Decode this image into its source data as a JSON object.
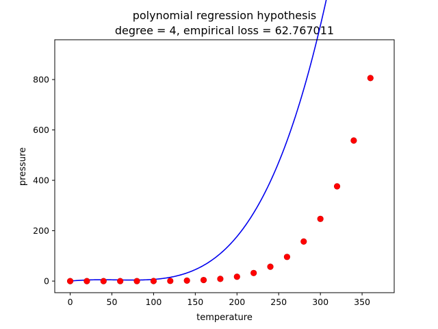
{
  "chart_data": {
    "type": "scatter",
    "title": "polynomial regression hypothesis",
    "subtitle": "degree = 4, empirical loss = 62.767011",
    "xlabel": "temperature",
    "ylabel": "pressure",
    "xlim": [
      -18.5,
      388.5
    ],
    "ylim": [
      -46,
      958
    ],
    "xticks": [
      0,
      50,
      100,
      150,
      200,
      250,
      300,
      350
    ],
    "yticks": [
      0,
      200,
      400,
      600,
      800
    ],
    "grid": false,
    "legend": "none",
    "colors": {
      "points": "#ff0000",
      "points_edge": "#cc0000",
      "curve": "#0000ee"
    },
    "points": {
      "x": [
        0,
        20,
        40,
        60,
        80,
        100,
        120,
        140,
        160,
        180,
        200,
        220,
        240,
        260,
        280,
        300,
        320,
        340,
        360
      ],
      "y": [
        0.0002,
        0.0012,
        0.006,
        0.03,
        0.09,
        0.27,
        0.75,
        1.85,
        4.2,
        8.8,
        17.3,
        32.1,
        57,
        96,
        157,
        247,
        376,
        558,
        806
      ]
    },
    "curve": {
      "x_range": [
        0,
        370
      ],
      "coefficients_note": "quartic fit",
      "poly": [
        -0.0012,
        0.3246,
        -0.00592,
        2.34e-05,
        1.01e-07
      ]
    }
  }
}
